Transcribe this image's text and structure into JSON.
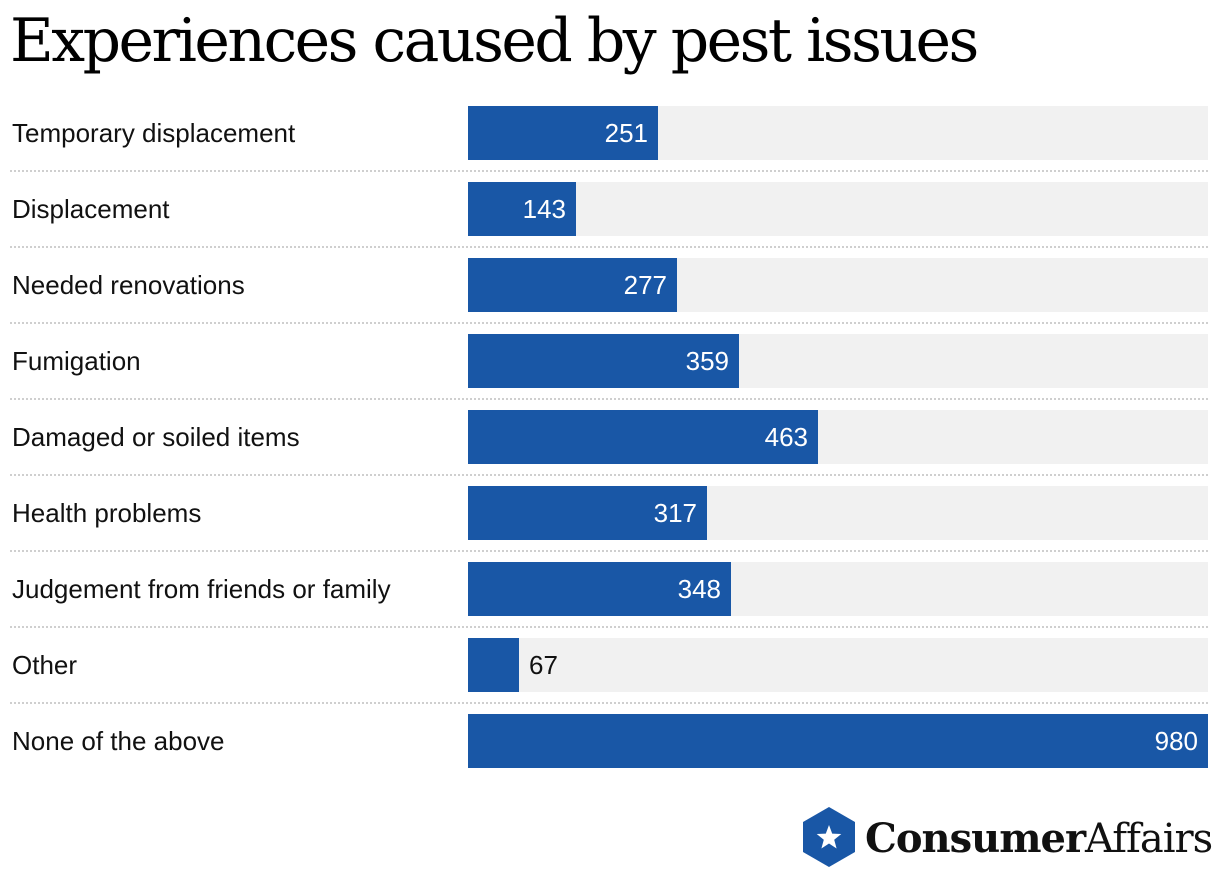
{
  "header": {
    "title": "Experiences caused by pest issues"
  },
  "colors": {
    "bar": "#1957a6",
    "track": "#f1f1f1",
    "brand": "#1957a6"
  },
  "chart_data": {
    "type": "bar",
    "orientation": "horizontal",
    "title": "Experiences caused by pest issues",
    "categories": [
      "Temporary displacement",
      "Displacement",
      "Needed renovations",
      "Fumigation",
      "Damaged or soiled items",
      "Health problems",
      "Judgement from friends or family",
      "Other",
      "None of the above"
    ],
    "values": [
      251,
      143,
      277,
      359,
      463,
      317,
      348,
      67,
      980
    ],
    "xlim": [
      0,
      980
    ],
    "grid": false,
    "data_labels": true
  },
  "logo": {
    "name_bold": "Consumer",
    "name_light": "Affairs",
    "icon": "star-badge-icon"
  }
}
